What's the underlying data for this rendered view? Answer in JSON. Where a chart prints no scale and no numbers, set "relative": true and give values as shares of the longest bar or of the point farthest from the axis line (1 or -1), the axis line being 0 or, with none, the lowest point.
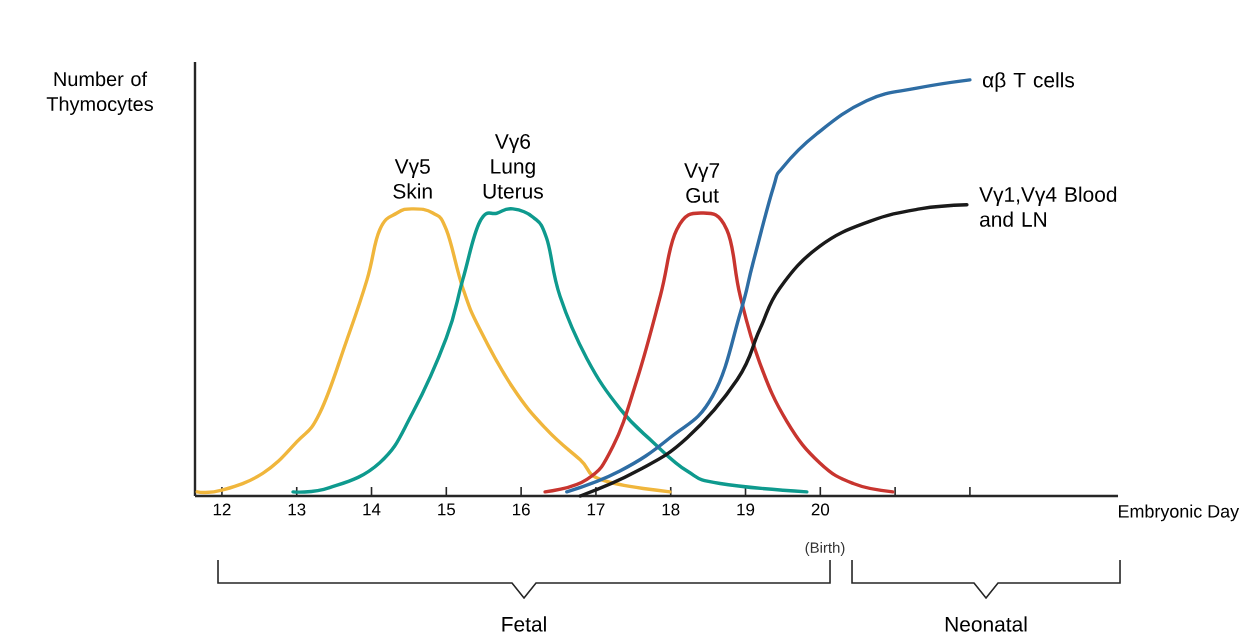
{
  "chart_data": {
    "type": "line",
    "relative": true,
    "xlabel": "Embryonic Day",
    "ylabel": "Number of Thymocytes",
    "xlim": [
      11.64,
      23.98
    ],
    "xticks": [
      12,
      13,
      14,
      15,
      16,
      17,
      18,
      19,
      20,
      {
        "value": 21,
        "label": null
      },
      {
        "value": 22,
        "label": null
      }
    ],
    "series": [
      {
        "name": "Vγ5 Skin",
        "color": "#f0b63c",
        "x": [
          11.67,
          12,
          12.55,
          13,
          13.31,
          13.67,
          13.94,
          14.11,
          14.34,
          14.55,
          14.82,
          15,
          15.22,
          15.45,
          15.89,
          16.34,
          16.79,
          17.09,
          17.99
        ],
        "values": [
          0.01,
          0.014,
          0.055,
          0.13,
          0.2,
          0.375,
          0.52,
          0.64,
          0.68,
          0.69,
          0.68,
          0.64,
          0.5,
          0.4,
          0.26,
          0.16,
          0.087,
          0.038,
          0.01
        ]
      },
      {
        "name": "Vγ6 Lung Uterus",
        "color": "#0e9a8e",
        "x": [
          12.95,
          13.44,
          14.11,
          14.55,
          15,
          15.22,
          15.45,
          15.68,
          15.89,
          16.16,
          16.34,
          16.52,
          16.88,
          17.32,
          17.76,
          18.22,
          18.66,
          19.82
        ],
        "values": [
          0.01,
          0.02,
          0.08,
          0.2,
          0.38,
          0.52,
          0.66,
          0.68,
          0.69,
          0.67,
          0.62,
          0.48,
          0.33,
          0.21,
          0.13,
          0.06,
          0.03,
          0.01
        ]
      },
      {
        "name": "Vγ7 Gut",
        "color": "#c8352f",
        "x": [
          16.32,
          16.88,
          17.23,
          17.55,
          17.86,
          18.08,
          18.42,
          18.75,
          18.93,
          19.19,
          19.55,
          19.99,
          20.44,
          20.97
        ],
        "values": [
          0.01,
          0.04,
          0.12,
          0.28,
          0.48,
          0.64,
          0.68,
          0.64,
          0.48,
          0.32,
          0.18,
          0.08,
          0.03,
          0.01
        ]
      },
      {
        "name": "αβ T cells",
        "color": "#2e6da4",
        "x": [
          16.61,
          17.32,
          17.99,
          18.56,
          18.93,
          19.1,
          19.37,
          19.5,
          19.95,
          20.62,
          21.29,
          22
        ],
        "values": [
          0.01,
          0.06,
          0.14,
          0.24,
          0.44,
          0.56,
          0.74,
          0.79,
          0.87,
          0.95,
          0.98,
          1
        ]
      },
      {
        "name": "Vγ1,Vγ4 Blood and LN",
        "color": "#1a1a1a",
        "x": [
          16.79,
          17.55,
          18.22,
          18.89,
          19.19,
          19.46,
          19.99,
          20.66,
          21.33,
          21.96
        ],
        "values": [
          0.0,
          0.06,
          0.14,
          0.28,
          0.4,
          0.5,
          0.6,
          0.66,
          0.69,
          0.7
        ]
      }
    ],
    "annotations": [
      "(Birth)",
      "Fetal",
      "Neonatal"
    ]
  }
}
